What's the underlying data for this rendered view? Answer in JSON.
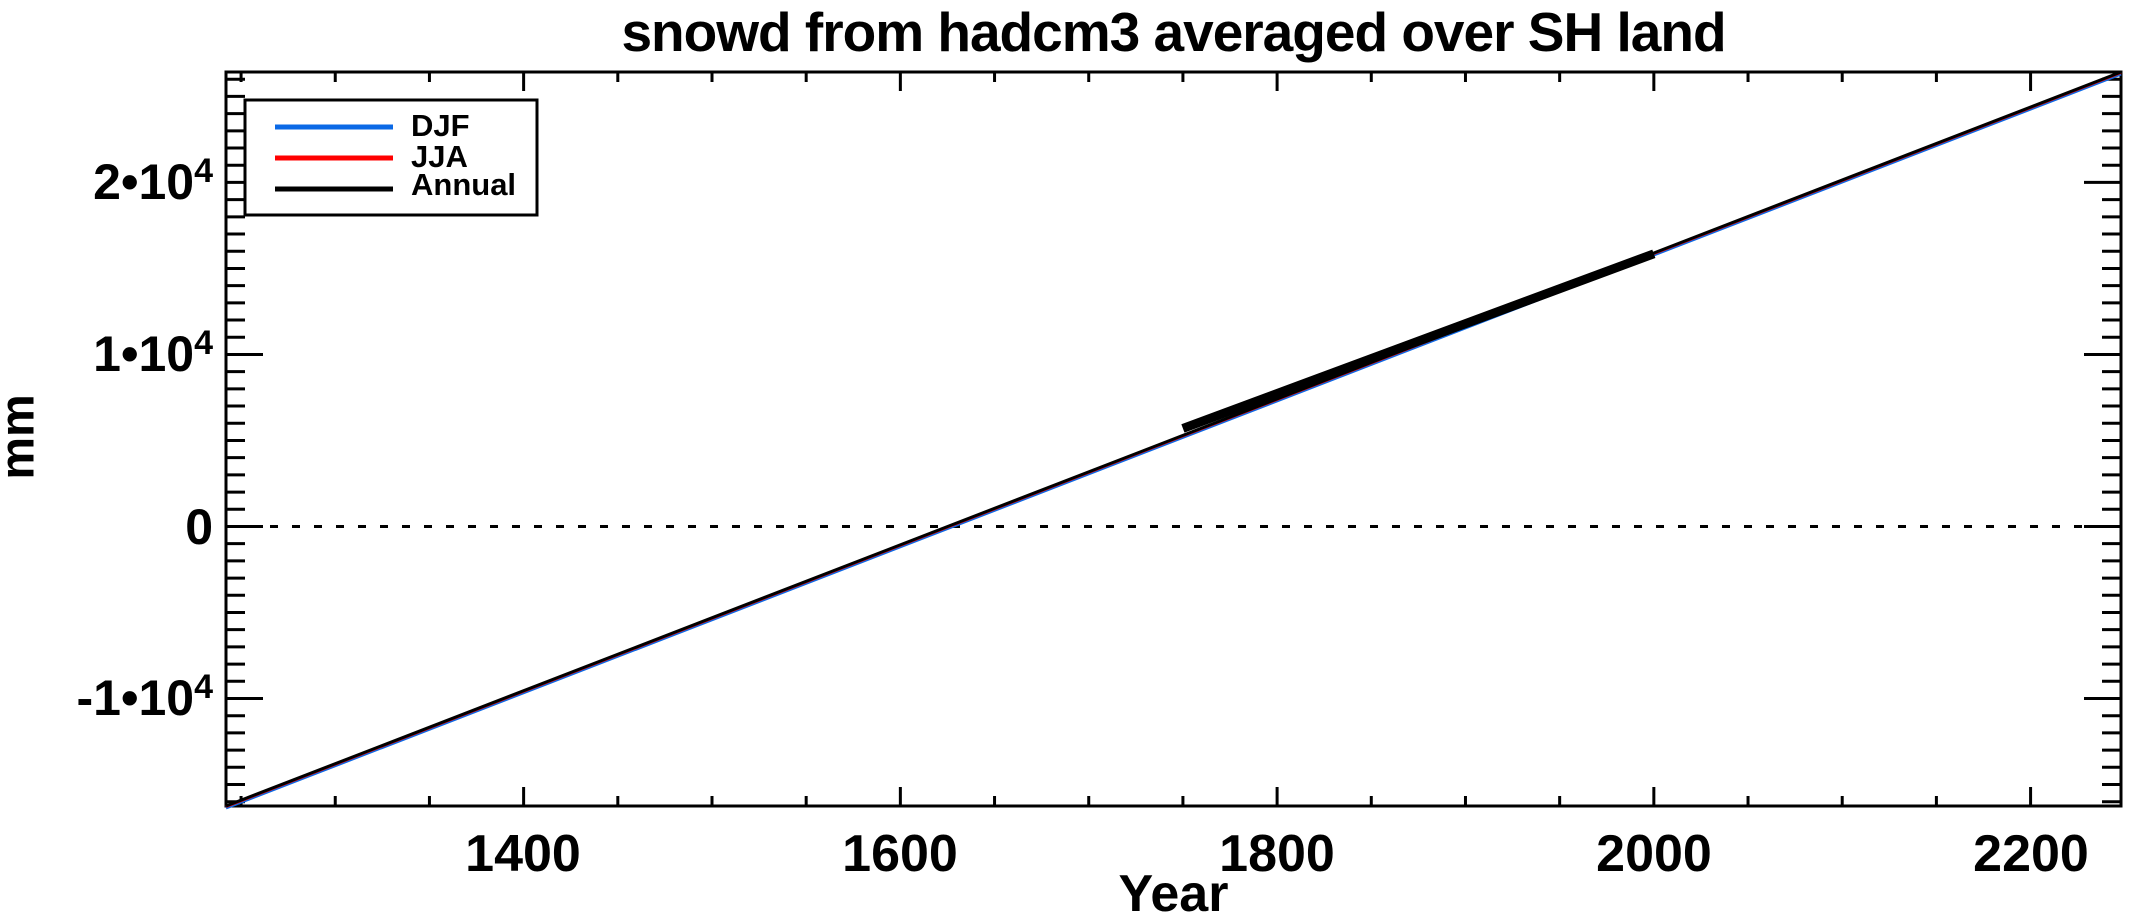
{
  "title": "snowd from hadcm3 averaged over SH land",
  "axes": {
    "x_label": "Year",
    "y_label": "mm"
  },
  "x_ticks": [
    {
      "value": 1400,
      "label": "1400"
    },
    {
      "value": 1600,
      "label": "1600"
    },
    {
      "value": 1800,
      "label": "1800"
    },
    {
      "value": 2000,
      "label": "2000"
    },
    {
      "value": 2200,
      "label": "2200"
    }
  ],
  "y_ticks": [
    {
      "value": 20000,
      "text": "2•10",
      "exp": "4"
    },
    {
      "value": 10000,
      "text": "1•10",
      "exp": "4"
    },
    {
      "value": 0,
      "text": "0",
      "exp": ""
    },
    {
      "value": -10000,
      "text": "-1•10",
      "exp": "4"
    }
  ],
  "legend": {
    "items": [
      {
        "label": "DJF",
        "color": "#0b69e6"
      },
      {
        "label": "JJA",
        "color": "#ff0000"
      },
      {
        "label": "Annual",
        "color": "#000000"
      }
    ]
  },
  "colors": {
    "background": "#ffffff",
    "axis": "#000000",
    "djf_blue": "#0b69e6",
    "jja_red": "#ff0000",
    "annual_black": "#000000"
  },
  "chart_data": {
    "type": "line",
    "title": "snowd from hadcm3 averaged over SH land",
    "xlabel": "Year",
    "ylabel": "mm",
    "xlim": [
      1242,
      2248
    ],
    "ylim": [
      -16250,
      26420
    ],
    "x_major_ticks": [
      1400,
      1600,
      1800,
      2000,
      2200
    ],
    "x_minor_step": 50,
    "y_major_ticks": [
      -10000,
      0,
      10000,
      20000
    ],
    "y_minor_step": 1000,
    "zero_reference_line": {
      "y": 0,
      "style": "dotted"
    },
    "grid": false,
    "legend_position": "top-left",
    "series": [
      {
        "name": "DJF",
        "color": "#0b69e6",
        "x": [
          1242,
          2248
        ],
        "y": [
          -16250,
          26420
        ],
        "line_width": 3
      },
      {
        "name": "JJA",
        "color": "#ff0000",
        "x": [
          1242,
          2248
        ],
        "y": [
          -16250,
          26420
        ],
        "line_width": 3
      },
      {
        "name": "Annual",
        "color": "#000000",
        "x": [
          1242,
          2248
        ],
        "y": [
          -16250,
          26420
        ],
        "line_width": 3,
        "thick_segment": {
          "x": [
            1750,
            2000
          ],
          "y": [
            5700,
            15850
          ],
          "line_width": 9
        }
      }
    ]
  }
}
